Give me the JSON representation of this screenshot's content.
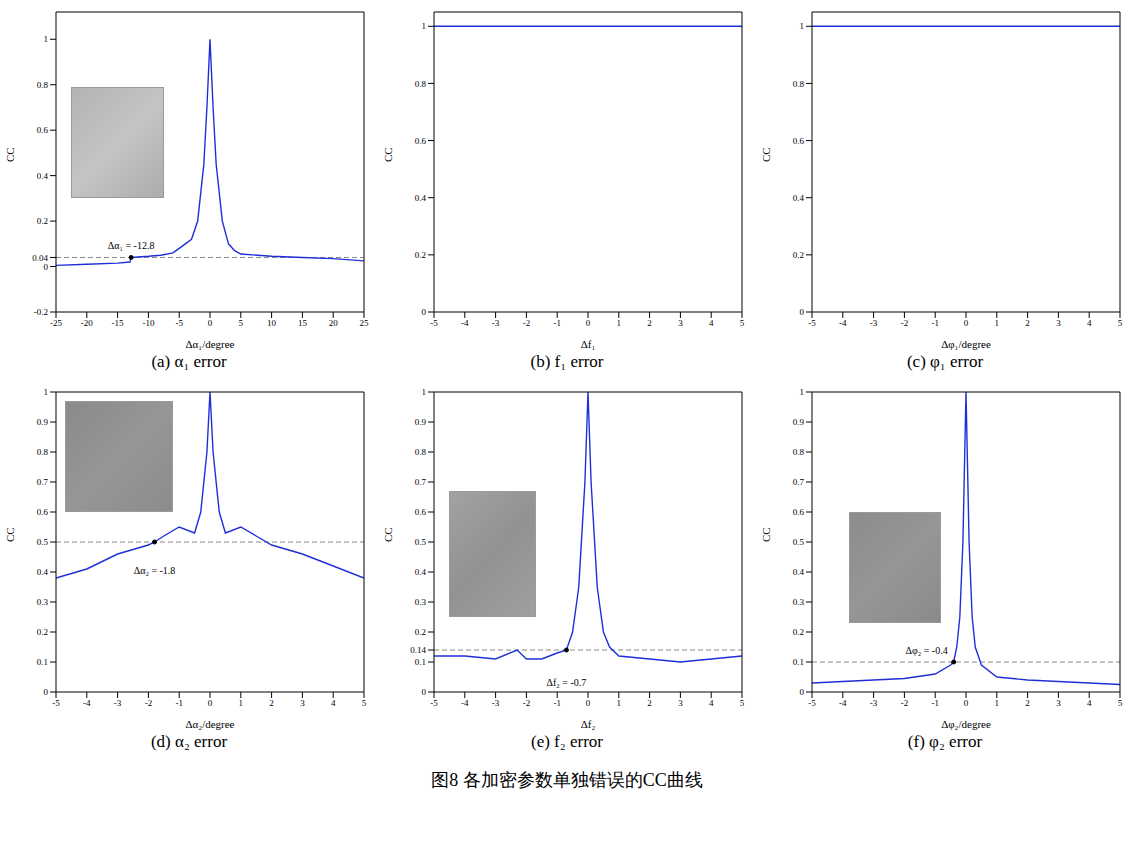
{
  "title": "图8 各加密参数单独错误的CC曲线",
  "chart_data": [
    {
      "type": "line",
      "title": "(a) α₁ error",
      "x_label": "Δα₁/degree",
      "y_label": "CC",
      "grid": false,
      "color": "#1f2fd8",
      "x": [
        -25,
        -20,
        -15,
        -13,
        -12.8,
        -10,
        -8,
        -6,
        -5,
        -4,
        -3,
        -2,
        -1,
        -0.5,
        0,
        0.5,
        1,
        2,
        3,
        4,
        5,
        10,
        15,
        20,
        25
      ],
      "values": [
        0.005,
        0.01,
        0.015,
        0.02,
        0.04,
        0.045,
        0.05,
        0.06,
        0.08,
        0.1,
        0.12,
        0.2,
        0.45,
        0.7,
        1,
        0.7,
        0.45,
        0.2,
        0.1,
        0.07,
        0.055,
        0.045,
        0.04,
        0.035,
        0.025
      ],
      "xlim": [
        -25,
        25
      ],
      "xticks": [
        -25,
        -20,
        -15,
        -10,
        -5,
        0,
        5,
        10,
        15,
        20,
        25
      ],
      "ylim": [
        -0.2,
        1.12
      ],
      "yticks": [
        -0.2,
        0,
        0.04,
        0.2,
        0.4,
        0.6,
        0.8,
        1
      ],
      "threshold": 0.04,
      "annotation": {
        "text": "Δα₁ = -12.8",
        "x": -12.8,
        "y": 0.04
      }
    },
    {
      "type": "line",
      "title": "(b) f₁ error",
      "x_label": "Δf₁",
      "y_label": "CC",
      "grid": false,
      "color": "#1f2fd8",
      "x": [
        -5,
        -2.5,
        0,
        2.5,
        5
      ],
      "values": [
        1,
        1,
        1,
        1,
        1
      ],
      "xlim": [
        -5,
        5
      ],
      "xticks": [
        -5,
        -4,
        -3,
        -2,
        -1,
        0,
        1,
        2,
        3,
        4,
        5
      ],
      "ylim": [
        0,
        1.05
      ],
      "yticks": [
        0,
        0.2,
        0.4,
        0.6,
        0.8,
        1
      ]
    },
    {
      "type": "line",
      "title": "(c) φ₁ error",
      "x_label": "Δφ₁/degree",
      "y_label": "CC",
      "grid": false,
      "color": "#1f2fd8",
      "x": [
        -5,
        -2.5,
        0,
        2.5,
        5
      ],
      "values": [
        1,
        1,
        1,
        1,
        1
      ],
      "xlim": [
        -5,
        5
      ],
      "xticks": [
        -5,
        -4,
        -3,
        -2,
        -1,
        0,
        1,
        2,
        3,
        4,
        5
      ],
      "ylim": [
        0,
        1.05
      ],
      "yticks": [
        0,
        0.2,
        0.4,
        0.6,
        0.8,
        1
      ]
    },
    {
      "type": "line",
      "title": "(d) α₂ error",
      "x_label": "Δα₂/degree",
      "y_label": "CC",
      "grid": false,
      "color": "#1f2fd8",
      "x": [
        -5,
        -4,
        -3,
        -2,
        -1.8,
        -1.5,
        -1,
        -0.5,
        -0.3,
        -0.1,
        0,
        0.1,
        0.3,
        0.5,
        1,
        1.5,
        2,
        3,
        4,
        5
      ],
      "values": [
        0.38,
        0.41,
        0.46,
        0.49,
        0.5,
        0.52,
        0.55,
        0.53,
        0.6,
        0.8,
        1,
        0.8,
        0.6,
        0.53,
        0.55,
        0.52,
        0.49,
        0.46,
        0.42,
        0.38
      ],
      "xlim": [
        -5,
        5
      ],
      "xticks": [
        -5,
        -4,
        -3,
        -2,
        -1,
        0,
        1,
        2,
        3,
        4,
        5
      ],
      "ylim": [
        0,
        1
      ],
      "yticks": [
        0,
        0.1,
        0.2,
        0.3,
        0.4,
        0.5,
        0.6,
        0.7,
        0.8,
        0.9,
        1
      ],
      "threshold": 0.5,
      "annotation": {
        "text": "Δα₂ = -1.8",
        "x": -1.8,
        "y": 0.5
      }
    },
    {
      "type": "line",
      "title": "(e) f₂ error",
      "x_label": "Δf₂",
      "y_label": "CC",
      "grid": false,
      "color": "#1f2fd8",
      "x": [
        -5,
        -4,
        -3,
        -2.3,
        -2,
        -1.5,
        -1,
        -0.7,
        -0.5,
        -0.3,
        -0.1,
        0,
        0.1,
        0.3,
        0.5,
        0.7,
        1,
        2,
        3,
        4,
        5
      ],
      "values": [
        0.12,
        0.12,
        0.11,
        0.14,
        0.11,
        0.11,
        0.13,
        0.14,
        0.2,
        0.35,
        0.7,
        1,
        0.7,
        0.35,
        0.2,
        0.15,
        0.12,
        0.11,
        0.1,
        0.11,
        0.12
      ],
      "xlim": [
        -5,
        5
      ],
      "xticks": [
        -5,
        -4,
        -3,
        -2,
        -1,
        0,
        1,
        2,
        3,
        4,
        5
      ],
      "ylim": [
        0,
        1
      ],
      "yticks": [
        0,
        0.1,
        0.14,
        0.2,
        0.3,
        0.4,
        0.5,
        0.6,
        0.7,
        0.8,
        0.9,
        1
      ],
      "threshold": 0.14,
      "annotation": {
        "text": "Δf₂ = -0.7",
        "x": -0.7,
        "y": 0.14
      }
    },
    {
      "type": "line",
      "title": "(f) φ₂ error",
      "x_label": "Δφ₂/degree",
      "y_label": "CC",
      "grid": false,
      "color": "#1f2fd8",
      "x": [
        -5,
        -4,
        -3,
        -2,
        -1,
        -0.5,
        -0.4,
        -0.3,
        -0.2,
        -0.1,
        0,
        0.1,
        0.2,
        0.3,
        0.5,
        1,
        2,
        3,
        4,
        5
      ],
      "values": [
        0.03,
        0.035,
        0.04,
        0.045,
        0.06,
        0.09,
        0.1,
        0.15,
        0.25,
        0.5,
        1,
        0.5,
        0.25,
        0.15,
        0.09,
        0.05,
        0.04,
        0.035,
        0.03,
        0.025
      ],
      "xlim": [
        -5,
        5
      ],
      "xticks": [
        -5,
        -4,
        -3,
        -2,
        -1,
        0,
        1,
        2,
        3,
        4,
        5
      ],
      "ylim": [
        0,
        1
      ],
      "yticks": [
        0,
        0.1,
        0.2,
        0.3,
        0.4,
        0.5,
        0.6,
        0.7,
        0.8,
        0.9,
        1
      ],
      "threshold": 0.1,
      "annotation": {
        "text": "Δφ₂ = -0.4",
        "x": -0.4,
        "y": 0.1
      }
    }
  ]
}
